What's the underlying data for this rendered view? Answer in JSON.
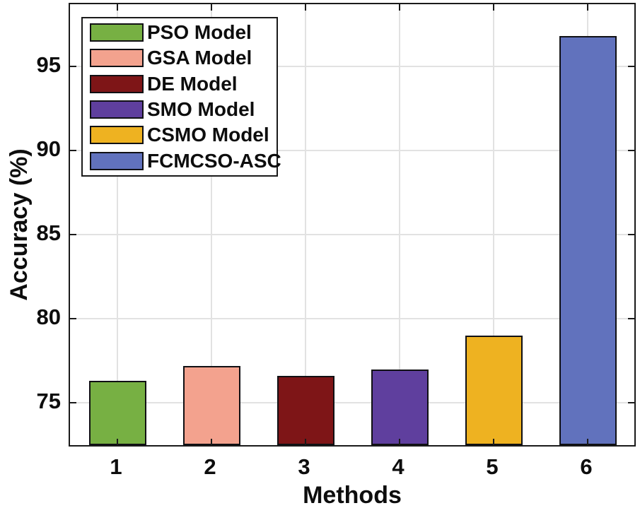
{
  "figure": {
    "background": "#ffffff",
    "axis_color": "#1a1a1a",
    "grid_color": "#e2e2e2",
    "text_color": "#0d0d0d",
    "bar_edge_color": "#101014"
  },
  "chart_data": {
    "type": "bar",
    "title": "",
    "xlabel": "Methods",
    "ylabel": "Accuracy (%)",
    "categories": [
      "1",
      "2",
      "3",
      "4",
      "5",
      "6"
    ],
    "series": [
      {
        "name": "PSO Model",
        "value": 76.3,
        "color": "#77b043"
      },
      {
        "name": "GSA Model",
        "value": 77.2,
        "color": "#f3a28e"
      },
      {
        "name": "DE Model",
        "value": 76.6,
        "color": "#7e1517"
      },
      {
        "name": "SMO Model",
        "value": 77.0,
        "color": "#5f3f9e"
      },
      {
        "name": "CSMO Model",
        "value": 79.0,
        "color": "#eeb221"
      },
      {
        "name": "FCMCSO-ASC",
        "value": 96.8,
        "color": "#6172bd"
      }
    ],
    "values": [
      76.3,
      77.2,
      76.6,
      77.0,
      79.0,
      96.8
    ],
    "yticks": [
      75,
      80,
      85,
      90,
      95
    ],
    "ylim": [
      72.5,
      98.67
    ],
    "grid": true,
    "legend_position": "upper-left",
    "bar_width_fraction": 0.61
  }
}
